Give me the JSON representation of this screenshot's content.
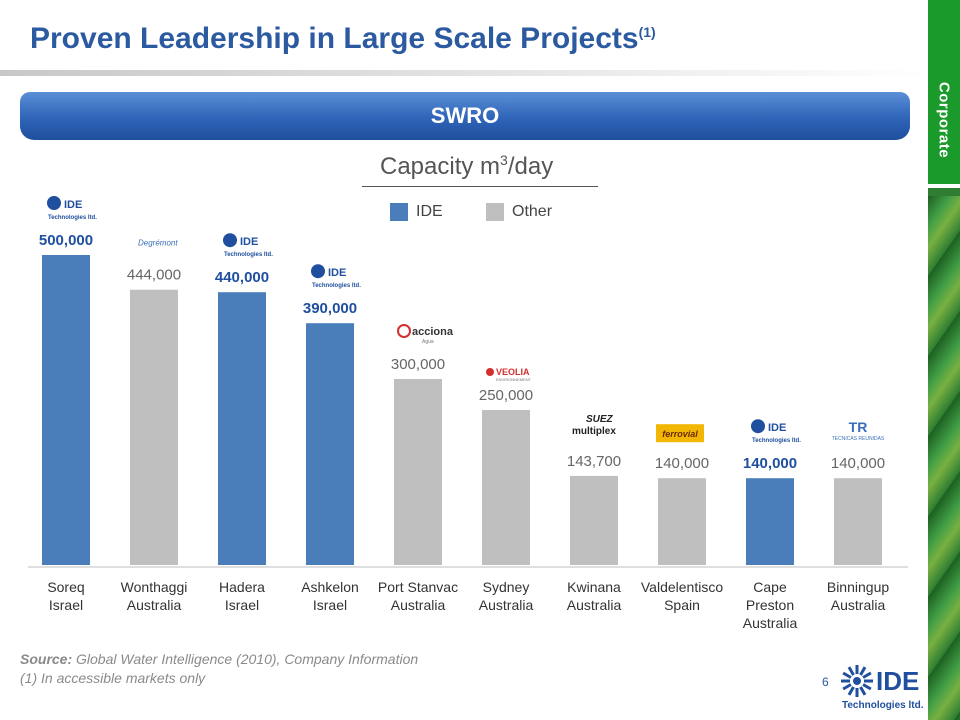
{
  "header": {
    "title": "Proven Leadership in Large Scale Projects",
    "title_sup": "(1)",
    "section_tab": "Corporate"
  },
  "banner": {
    "text": "SWRO"
  },
  "capacity": {
    "title_main": "Capacity m",
    "title_sup": "3",
    "title_tail": "/day"
  },
  "legend": [
    {
      "label": "IDE",
      "color": "#4a7ebb"
    },
    {
      "label": "Other",
      "color": "#bfbfbf"
    }
  ],
  "chart_data": {
    "type": "bar",
    "title": "Capacity m3/day",
    "categories": [
      [
        "Soreq",
        "Israel"
      ],
      [
        "Wonthaggi",
        "Australia"
      ],
      [
        "Hadera",
        "Israel"
      ],
      [
        "Ashkelon",
        "Israel"
      ],
      [
        "Port Stanvac",
        "Australia"
      ],
      [
        "Sydney",
        "Australia"
      ],
      [
        "Kwinana",
        "Australia"
      ],
      [
        "Valdelentisco",
        "Spain"
      ],
      [
        "Cape",
        "Preston",
        "Australia"
      ],
      [
        "Binningup",
        "Australia"
      ]
    ],
    "values": [
      500000,
      444000,
      440000,
      390000,
      300000,
      250000,
      143700,
      140000,
      140000,
      140000
    ],
    "labels": [
      "500,000",
      "444,000",
      "440,000",
      "390,000",
      "300,000",
      "250,000",
      "143,700",
      "140,000",
      "140,000",
      "140,000"
    ],
    "operator": [
      "IDE",
      "Other",
      "IDE",
      "IDE",
      "Other",
      "Other",
      "Other",
      "Other",
      "IDE",
      "Other"
    ],
    "logos": [
      {
        "text": "IDE",
        "sub": "Technologies ltd."
      },
      {
        "text": "Degrémont"
      },
      {
        "text": "IDE",
        "sub": "Technologies ltd."
      },
      {
        "text": "IDE",
        "sub": "Technologies ltd."
      },
      {
        "text": "acciona",
        "sub": "Agua"
      },
      {
        "text": "VEOLIA",
        "sub": "ENVIRONNEMENT"
      },
      {
        "text": "SUEZ",
        "sub": "multiplex"
      },
      {
        "text": "ferrovial"
      },
      {
        "text": "IDE",
        "sub": "Technologies ltd."
      },
      {
        "text": "TR",
        "sub": "TECNICAS REUNIDAS"
      }
    ],
    "colors": {
      "IDE": "#4a7ebb",
      "Other": "#bfbfbf",
      "IDE_label": "#1f4f9e",
      "Other_label": "#666666"
    },
    "ylim": [
      0,
      500000
    ],
    "grid": false,
    "legend_position": "top-right"
  },
  "footer": {
    "source_label": "Source:",
    "source_text": " Global Water Intelligence (2010), Company Information",
    "footnote": "(1) In accessible markets only",
    "page_number": "6",
    "logo_text": "IDE",
    "logo_sub": "Technologies ltd."
  }
}
